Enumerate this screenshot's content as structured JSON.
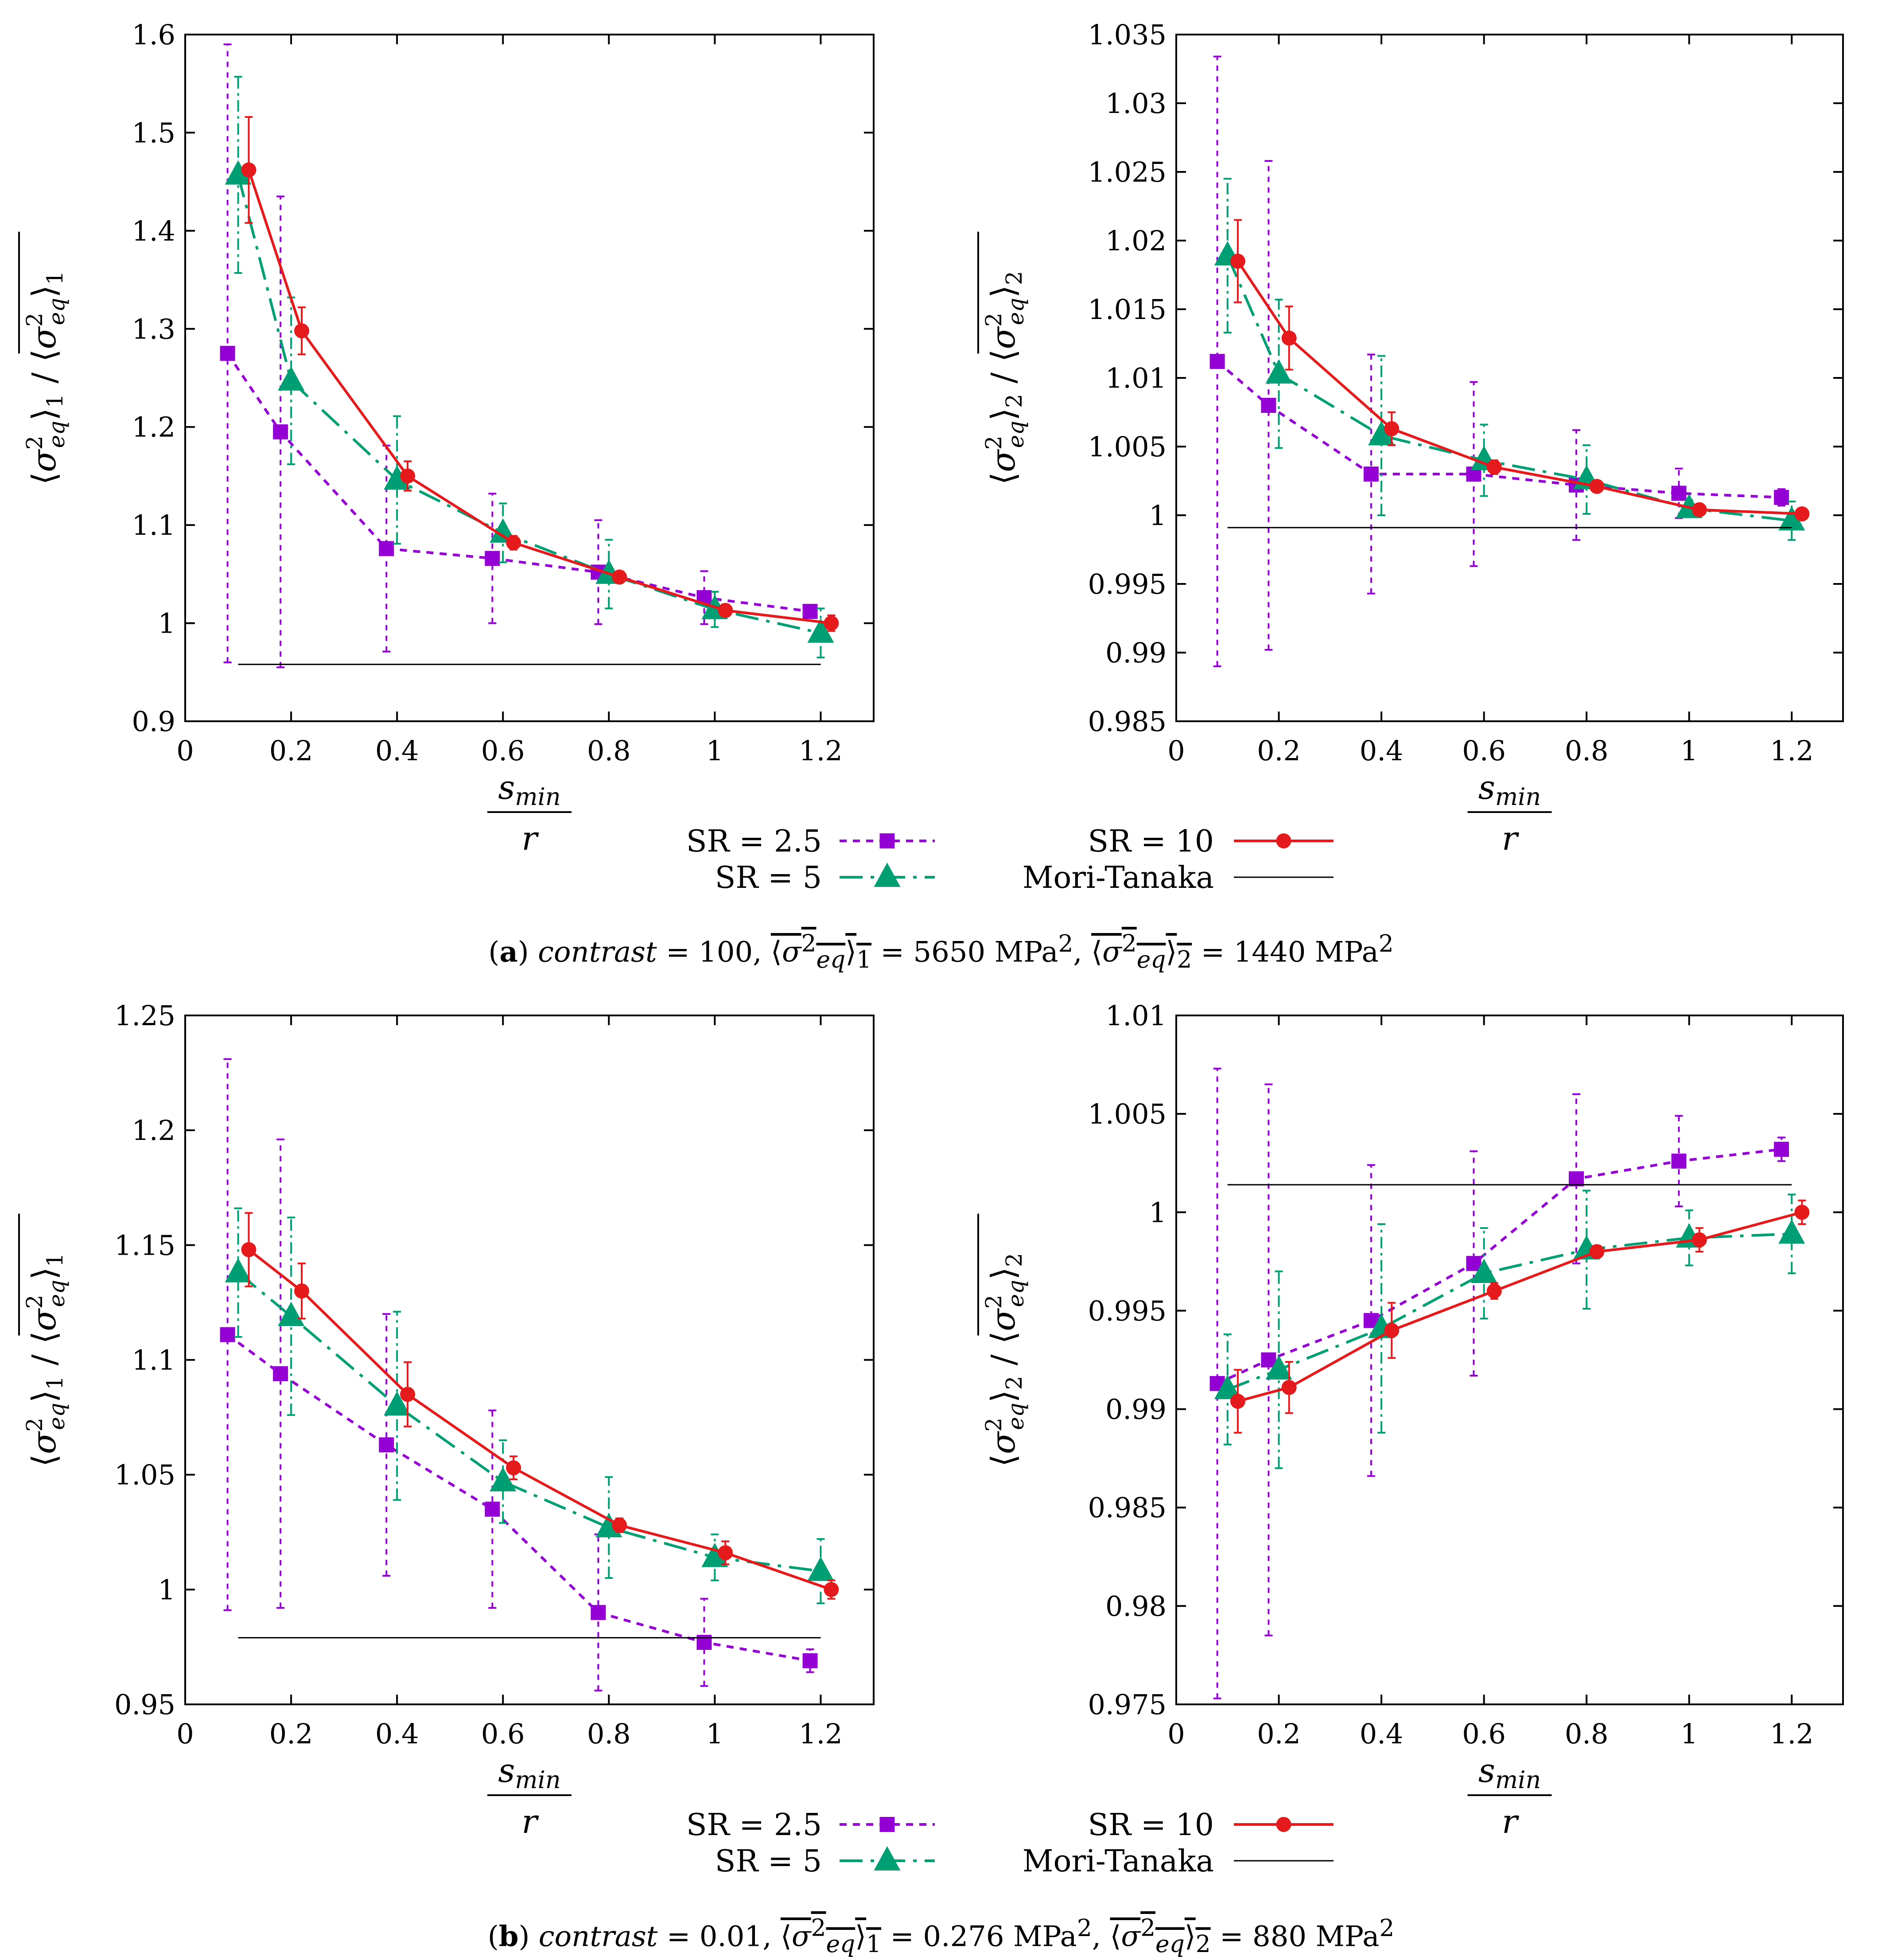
{
  "figure": {
    "captions": [
      {
        "letter": "a",
        "text": "contrast = 100, ⟨σ²eq⟩₁ (mean) = 5650 MPa², ⟨σ²eq⟩₂ (mean) = 1440 MPa²"
      },
      {
        "letter": "b",
        "text": "contrast = 0.01, ⟨σ²eq⟩₁ (mean) = 0.276 MPa², ⟨σ²eq⟩₂ (mean) = 880 MPa²"
      }
    ],
    "legend_entries": [
      "SR = 2.5",
      "SR = 10",
      "SR = 5",
      "Mori-Tanaka"
    ],
    "colors": {
      "sr25": "#9400d3",
      "sr5": "#009e73",
      "sr10": "#e41a1c",
      "mt": "#000000"
    }
  },
  "chart_data": [
    {
      "id": "a1",
      "type": "line",
      "xlabel": "s_min / r",
      "ylabel": "⟨σ²eq⟩₁ / ⟨σ²eq⟩₁ (mean)",
      "xlim": [
        0,
        1.3
      ],
      "ylim": [
        0.9,
        1.6
      ],
      "xticks": [
        "0",
        "0.2",
        "0.4",
        "0.6",
        "0.8",
        "1",
        "1.2"
      ],
      "yticks": [
        "0.9",
        "1",
        "1.1",
        "1.2",
        "1.3",
        "1.4",
        "1.5",
        "1.6"
      ],
      "series": [
        {
          "name": "SR = 2.5",
          "x": [
            0.08,
            0.18,
            0.38,
            0.58,
            0.78,
            0.98,
            1.18
          ],
          "y": [
            1.275,
            1.195,
            1.076,
            1.066,
            1.052,
            1.026,
            1.012
          ],
          "err": [
            0.315,
            0.24,
            0.105,
            0.066,
            0.053,
            0.027,
            0.006
          ]
        },
        {
          "name": "SR = 5",
          "x": [
            0.1,
            0.2,
            0.4,
            0.6,
            0.8,
            1.0,
            1.2
          ],
          "y": [
            1.457,
            1.247,
            1.146,
            1.092,
            1.05,
            1.014,
            0.99
          ],
          "err": [
            0.1,
            0.085,
            0.065,
            0.03,
            0.035,
            0.018,
            0.025
          ]
        },
        {
          "name": "SR = 10",
          "x": [
            0.12,
            0.22,
            0.42,
            0.62,
            0.82,
            1.02,
            1.22
          ],
          "y": [
            1.462,
            1.298,
            1.15,
            1.082,
            1.047,
            1.013,
            1.0
          ],
          "err": [
            0.054,
            0.024,
            0.015,
            0.007,
            0.005,
            0.006,
            0.008
          ]
        },
        {
          "name": "Mori-Tanaka",
          "x": [
            0.1,
            1.2
          ],
          "y": [
            0.958,
            0.958
          ]
        }
      ]
    },
    {
      "id": "a2",
      "type": "line",
      "xlabel": "s_min / r",
      "ylabel": "⟨σ²eq⟩₂ / ⟨σ²eq⟩₂ (mean)",
      "xlim": [
        0,
        1.3
      ],
      "ylim": [
        0.985,
        1.035
      ],
      "xticks": [
        "0",
        "0.2",
        "0.4",
        "0.6",
        "0.8",
        "1",
        "1.2"
      ],
      "yticks": [
        "0.985",
        "0.99",
        "0.995",
        "1",
        "1.005",
        "1.01",
        "1.015",
        "1.02",
        "1.025",
        "1.03",
        "1.035"
      ],
      "series": [
        {
          "name": "SR = 2.5",
          "x": [
            0.08,
            0.18,
            0.38,
            0.58,
            0.78,
            0.98,
            1.18
          ],
          "y": [
            1.0112,
            1.008,
            1.003,
            1.003,
            1.0022,
            1.0016,
            1.0013
          ],
          "err": [
            0.0222,
            0.0178,
            0.0087,
            0.0067,
            0.004,
            0.0018,
            0.0006
          ]
        },
        {
          "name": "SR = 5",
          "x": [
            0.1,
            0.2,
            0.4,
            0.6,
            0.8,
            1.0,
            1.2
          ],
          "y": [
            1.0189,
            1.0103,
            1.0058,
            1.004,
            1.0026,
            1.0005,
            0.9996
          ],
          "err": [
            0.0056,
            0.0054,
            0.0058,
            0.0026,
            0.0025,
            0.0006,
            0.0014
          ]
        },
        {
          "name": "SR = 10",
          "x": [
            0.12,
            0.22,
            0.42,
            0.62,
            0.82,
            1.02,
            1.22
          ],
          "y": [
            1.0185,
            1.0129,
            1.0063,
            1.0035,
            1.0021,
            1.0004,
            1.0001
          ],
          "err": [
            0.003,
            0.0023,
            0.0012,
            0.0005,
            0.0004,
            0.0003,
            0.0004
          ]
        },
        {
          "name": "Mori-Tanaka",
          "x": [
            0.1,
            1.2
          ],
          "y": [
            0.9991,
            0.9991
          ]
        }
      ]
    },
    {
      "id": "b1",
      "type": "line",
      "xlabel": "s_min / r",
      "ylabel": "⟨σ²eq⟩₁ / ⟨σ²eq⟩₁ (mean)",
      "xlim": [
        0,
        1.3
      ],
      "ylim": [
        0.95,
        1.25
      ],
      "xticks": [
        "0",
        "0.2",
        "0.4",
        "0.6",
        "0.8",
        "1",
        "1.2"
      ],
      "yticks": [
        "0.95",
        "1",
        "1.05",
        "1.1",
        "1.15",
        "1.2",
        "1.25"
      ],
      "series": [
        {
          "name": "SR = 2.5",
          "x": [
            0.08,
            0.18,
            0.38,
            0.58,
            0.78,
            0.98,
            1.18
          ],
          "y": [
            1.111,
            1.094,
            1.063,
            1.035,
            0.99,
            0.977,
            0.969
          ],
          "err": [
            0.12,
            0.102,
            0.057,
            0.043,
            0.034,
            0.019,
            0.005
          ]
        },
        {
          "name": "SR = 5",
          "x": [
            0.1,
            0.2,
            0.4,
            0.6,
            0.8,
            1.0,
            1.2
          ],
          "y": [
            1.138,
            1.119,
            1.08,
            1.047,
            1.027,
            1.014,
            1.008
          ],
          "err": [
            0.028,
            0.043,
            0.041,
            0.018,
            0.022,
            0.01,
            0.014
          ]
        },
        {
          "name": "SR = 10",
          "x": [
            0.12,
            0.22,
            0.42,
            0.62,
            0.82,
            1.02,
            1.22
          ],
          "y": [
            1.148,
            1.13,
            1.085,
            1.053,
            1.028,
            1.016,
            1.0
          ],
          "err": [
            0.016,
            0.012,
            0.014,
            0.005,
            0.003,
            0.005,
            0.004
          ]
        },
        {
          "name": "Mori-Tanaka",
          "x": [
            0.1,
            1.2
          ],
          "y": [
            0.979,
            0.979
          ]
        }
      ]
    },
    {
      "id": "b2",
      "type": "line",
      "xlabel": "s_min / r",
      "ylabel": "⟨σ²eq⟩₂ / ⟨σ²eq⟩₂ (mean)",
      "xlim": [
        0,
        1.3
      ],
      "ylim": [
        0.975,
        1.01
      ],
      "xticks": [
        "0",
        "0.2",
        "0.4",
        "0.6",
        "0.8",
        "1",
        "1.2"
      ],
      "yticks": [
        "0.975",
        "0.98",
        "0.985",
        "0.99",
        "0.995",
        "1",
        "1.005",
        "1.01"
      ],
      "series": [
        {
          "name": "SR = 2.5",
          "x": [
            0.08,
            0.18,
            0.38,
            0.58,
            0.78,
            0.98,
            1.18
          ],
          "y": [
            0.9913,
            0.9925,
            0.9945,
            0.9974,
            1.0017,
            1.0026,
            1.0032
          ],
          "err": [
            0.016,
            0.014,
            0.0079,
            0.0057,
            0.0043,
            0.0023,
            0.0006
          ]
        },
        {
          "name": "SR = 5",
          "x": [
            0.1,
            0.2,
            0.4,
            0.6,
            0.8,
            1.0,
            1.2
          ],
          "y": [
            0.991,
            0.992,
            0.9941,
            0.9969,
            0.9981,
            0.9987,
            0.9989
          ],
          "err": [
            0.0028,
            0.005,
            0.0053,
            0.0023,
            0.003,
            0.0014,
            0.002
          ]
        },
        {
          "name": "SR = 10",
          "x": [
            0.12,
            0.22,
            0.42,
            0.62,
            0.82,
            1.02,
            1.22
          ],
          "y": [
            0.9904,
            0.9911,
            0.994,
            0.996,
            0.998,
            0.9986,
            1.0
          ],
          "err": [
            0.0016,
            0.0013,
            0.0014,
            0.0004,
            0.0003,
            0.0006,
            0.0006
          ]
        },
        {
          "name": "Mori-Tanaka",
          "x": [
            0.1,
            1.2
          ],
          "y": [
            1.0014,
            1.0014
          ]
        }
      ]
    }
  ]
}
